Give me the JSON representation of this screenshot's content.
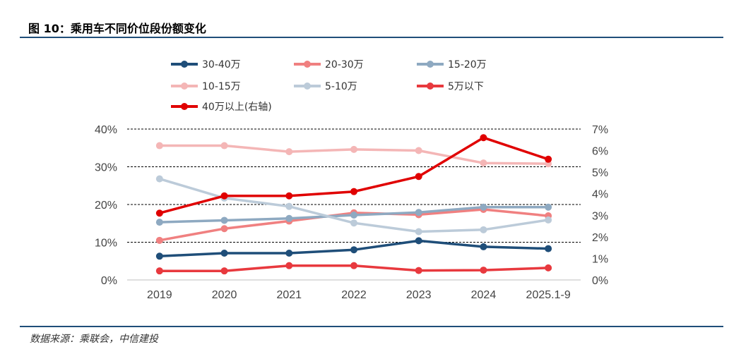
{
  "header": {
    "title": "图 10：乘用车不同价位段份额变化"
  },
  "footer": {
    "source": "数据来源：乘联会，中信建投"
  },
  "chart_data": {
    "type": "line",
    "title": "图 10：乘用车不同价位段份额变化",
    "categories": [
      "2019",
      "2020",
      "2021",
      "2022",
      "2023",
      "2024",
      "2025.1-9"
    ],
    "left_axis": {
      "ylim": [
        0,
        40
      ],
      "ticks": [
        "0%",
        "10%",
        "20%",
        "30%",
        "40%"
      ],
      "unit": "%"
    },
    "right_axis": {
      "ylim": [
        0,
        7
      ],
      "ticks": [
        "0%",
        "1%",
        "2%",
        "3%",
        "4%",
        "5%",
        "6%",
        "7%"
      ],
      "unit": "%"
    },
    "gridlines": "dashed at left-axis major ticks",
    "series": [
      {
        "name": "30-40万",
        "axis": "left",
        "color": "#1f4e79",
        "values": [
          6.3,
          7.1,
          7.1,
          8.0,
          10.4,
          8.8,
          8.3
        ]
      },
      {
        "name": "20-30万",
        "axis": "left",
        "color": "#f08080",
        "values": [
          10.5,
          13.6,
          15.6,
          17.8,
          17.3,
          18.7,
          17.0
        ]
      },
      {
        "name": "15-20万",
        "axis": "left",
        "color": "#8ea9c1",
        "values": [
          15.3,
          15.8,
          16.3,
          17.2,
          17.9,
          19.3,
          19.3
        ]
      },
      {
        "name": "10-15万",
        "axis": "left",
        "color": "#f4b6b6",
        "values": [
          35.6,
          35.6,
          34.0,
          34.6,
          34.3,
          31.0,
          30.8
        ]
      },
      {
        "name": "5-10万",
        "axis": "left",
        "color": "#bccbd9",
        "values": [
          26.8,
          21.7,
          19.5,
          15.1,
          12.8,
          13.3,
          15.9
        ]
      },
      {
        "name": "5万以下",
        "axis": "left",
        "color": "#e8393e",
        "values": [
          2.4,
          2.4,
          3.8,
          3.8,
          2.5,
          2.6,
          3.2
        ]
      },
      {
        "name": "40万以上(右轴)",
        "axis": "right",
        "color": "#e00000",
        "values": [
          3.1,
          3.9,
          3.9,
          4.1,
          4.8,
          6.6,
          5.6
        ]
      }
    ],
    "legend_position": "top"
  }
}
